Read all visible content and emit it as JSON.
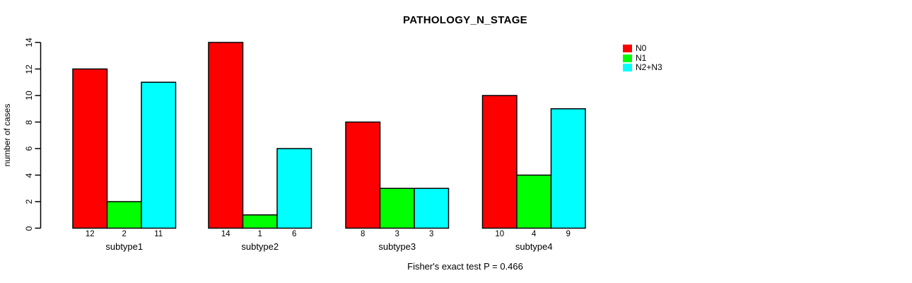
{
  "title": "PATHOLOGY_N_STAGE",
  "chart_data": {
    "type": "bar",
    "title": "PATHOLOGY_N_STAGE",
    "categories": [
      "subtype1",
      "subtype2",
      "subtype3",
      "subtype4"
    ],
    "series": [
      {
        "name": "N0",
        "color": "#ff0000",
        "values": [
          12,
          14,
          8,
          10
        ]
      },
      {
        "name": "N1",
        "color": "#00ff00",
        "values": [
          2,
          1,
          3,
          4
        ]
      },
      {
        "name": "N2+N3",
        "color": "#00ffff",
        "values": [
          11,
          6,
          3,
          9
        ]
      }
    ],
    "xlabel": "",
    "ylabel": "number of cases",
    "ylim": [
      0,
      14
    ],
    "yticks": [
      0,
      2,
      4,
      6,
      8,
      10,
      12,
      14
    ],
    "bar_value_labels": true,
    "grid": false,
    "legend_position": "top-right",
    "annotation": "Fisher's exact test P = 0.466",
    "background_color": "#ffffff",
    "axis_color": "#000000",
    "text_color": "#000000"
  }
}
